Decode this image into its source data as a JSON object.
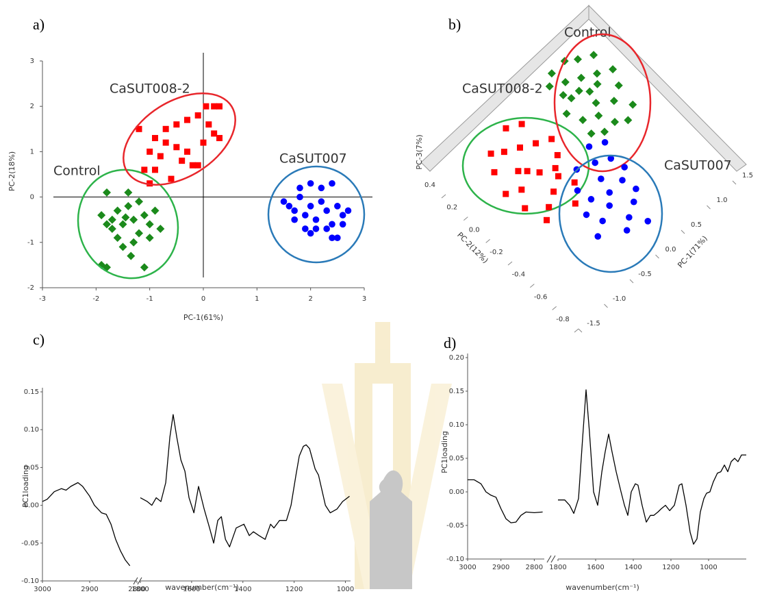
{
  "chart_data": [
    {
      "type": "scatter",
      "panel_label": "a)",
      "xlabel": "PC-1(61%)",
      "ylabel": "PC-2(18%)",
      "xlim": [
        -3,
        3
      ],
      "ylim": [
        -2,
        3
      ],
      "xticks": [
        -3,
        -2,
        -1,
        0,
        1,
        2,
        3
      ],
      "yticks": [
        -2,
        -1,
        0,
        1,
        2,
        3
      ],
      "series": [
        {
          "name": "Control",
          "color": "#1b8a1b",
          "marker": "diamond",
          "ellipse_color": "#2db34a",
          "x": [
            -1.9,
            -1.8,
            -1.7,
            -1.6,
            -1.5,
            -1.4,
            -1.3,
            -1.2,
            -1.1,
            -1.0,
            -0.9,
            -0.8,
            -1.8,
            -1.4,
            -1.6,
            -1.3,
            -1.2,
            -1.5,
            -1.35,
            -1.9,
            -1.8,
            -1.1,
            -1.0,
            -1.7,
            -1.45
          ],
          "y": [
            -0.4,
            -0.6,
            -0.5,
            -0.3,
            -0.6,
            -0.2,
            -0.5,
            -0.1,
            -0.4,
            -0.6,
            -0.3,
            -0.7,
            0.1,
            0.1,
            -0.9,
            -1.0,
            -0.8,
            -1.1,
            -1.3,
            -1.5,
            -1.55,
            -1.55,
            -0.9,
            -0.7,
            -0.45
          ]
        },
        {
          "name": "CaSUT008-2",
          "color": "#ff0000",
          "marker": "square",
          "ellipse_color": "#e8262b",
          "x": [
            -1.2,
            -0.9,
            -0.7,
            -0.5,
            -0.3,
            -0.1,
            0.1,
            0.2,
            0.3,
            0.05,
            -0.8,
            -0.9,
            -1.1,
            -1.0,
            -0.6,
            -0.4,
            -0.3,
            -0.2,
            0.3,
            -0.5,
            0.0,
            -0.1,
            -1.0,
            -0.7,
            0.2
          ],
          "y": [
            1.5,
            1.3,
            1.5,
            1.6,
            1.7,
            1.8,
            1.6,
            2.0,
            2.0,
            2.0,
            0.9,
            0.6,
            0.6,
            0.3,
            0.4,
            0.8,
            1.0,
            0.7,
            1.3,
            1.1,
            1.2,
            0.7,
            1.0,
            1.2,
            1.4
          ]
        },
        {
          "name": "CaSUT007",
          "color": "#0000ff",
          "marker": "circle",
          "ellipse_color": "#2a7ab8",
          "x": [
            1.5,
            1.6,
            1.7,
            1.8,
            1.9,
            2.0,
            2.1,
            2.2,
            2.3,
            2.4,
            2.5,
            2.6,
            2.7,
            2.0,
            2.2,
            2.4,
            1.8,
            2.0,
            2.1,
            2.4,
            2.5,
            1.7,
            2.3,
            2.6,
            1.9
          ],
          "y": [
            -0.1,
            -0.2,
            -0.3,
            0.0,
            -0.4,
            -0.2,
            -0.5,
            -0.1,
            -0.3,
            -0.6,
            -0.2,
            -0.4,
            -0.3,
            0.3,
            0.2,
            0.3,
            0.2,
            -0.8,
            -0.7,
            -0.9,
            -0.9,
            -0.5,
            -0.7,
            -0.6,
            -0.7
          ]
        }
      ]
    },
    {
      "type": "scatter3d",
      "panel_label": "b)",
      "xlabel": "PC-1(71%)",
      "ylabel": "PC-2(12%)",
      "zlabel": "PC-3(7%)",
      "xlim": [
        -1.5,
        1.5
      ],
      "ylim": [
        -0.8,
        0.4
      ],
      "xticks": [
        -1.5,
        {
          "value": -1,
          "label": "-1.0"
        },
        -0.5,
        {
          "value": 0,
          "label": "0.0"
        },
        0.5,
        {
          "value": 1,
          "label": "1.0"
        },
        1.5
      ],
      "yticks": [
        -0.8,
        -0.6,
        -0.4,
        -0.2,
        {
          "value": 0,
          "label": "0.0"
        },
        0.2,
        0.4
      ],
      "series": [
        {
          "name": "Control",
          "color": "#1b8a1b",
          "marker": "diamond",
          "ellipse_color": "#2db34a",
          "x": [
            0.5,
            0.3,
            0.2,
            0.4,
            0.6,
            0.8,
            0.9,
            0.7,
            0.5,
            0.3,
            0.1,
            0.2,
            0.6,
            0.75,
            1.0,
            0.85,
            0.4,
            0.55,
            0.65,
            0.35,
            0.15,
            0.95,
            0.45,
            0.7,
            0.25
          ],
          "y": [
            -0.03,
            0.1,
            -0.05,
            0.2,
            0.15,
            0.1,
            -0.05,
            -0.1,
            -0.2,
            -0.2,
            0.05,
            0.25,
            0.3,
            0.25,
            0.05,
            -0.2,
            -0.1,
            0.05,
            -0.25,
            0.3,
            -0.15,
            0.2,
            0.1,
            0.05,
            0.15
          ]
        },
        {
          "name": "CaSUT008-2",
          "color": "#ff0000",
          "marker": "square",
          "ellipse_color": "#e8262b",
          "x": [
            -0.86,
            -1.2,
            -1.1,
            -0.9,
            -0.7,
            -0.5,
            -0.4,
            -0.6,
            -0.8,
            -1.0,
            -1.3,
            -1.25,
            -0.5,
            -0.3,
            -0.7,
            -0.95,
            -1.05,
            -0.65,
            -0.45,
            -0.75,
            -1.15,
            -0.55
          ],
          "y": [
            -0.04,
            0.1,
            -0.1,
            0.15,
            0.1,
            0.05,
            -0.1,
            -0.2,
            -0.25,
            -0.3,
            -0.05,
            -0.2,
            -0.3,
            0.0,
            -0.4,
            0.0,
            0.2,
            0.25,
            0.2,
            -0.1,
            -0.35,
            -0.15
          ]
        },
        {
          "name": "CaSUT007",
          "color": "#0000ff",
          "marker": "circle",
          "ellipse_color": "#2a7ab8",
          "x": [
            -0.38,
            -0.2,
            0.0,
            -0.1,
            0.1,
            -0.5,
            -0.6,
            -0.3,
            -0.1,
            0.05,
            -0.45,
            -0.7,
            0.15,
            -0.25,
            -0.55,
            -0.8,
            -0.35,
            0.0,
            -0.15,
            0.2
          ],
          "y": [
            -0.56,
            -0.4,
            -0.5,
            -0.3,
            -0.35,
            -0.45,
            -0.6,
            -0.7,
            -0.65,
            -0.6,
            -0.75,
            -0.5,
            -0.45,
            -0.5,
            -0.35,
            -0.65,
            -0.25,
            -0.2,
            -0.8,
            -0.25
          ]
        }
      ]
    },
    {
      "type": "line",
      "panel_label": "c)",
      "xlabel": "wavenumber(cm⁻¹)",
      "ylabel": "PC1loading",
      "color": "#000000",
      "ylim": [
        -0.1,
        0.15
      ],
      "yticks": [
        {
          "value": -0.1,
          "label": "-0.10"
        },
        -0.05,
        {
          "value": 0,
          "label": "0.00"
        },
        0.05,
        {
          "value": 0.1,
          "label": "0.10"
        },
        0.15
      ],
      "segments": [
        {
          "xlim": [
            3000,
            2800
          ],
          "xticks": [
            3000,
            2900,
            2800
          ],
          "x": [
            3000,
            2990,
            2975,
            2960,
            2950,
            2940,
            2925,
            2915,
            2900,
            2890,
            2875,
            2865,
            2855,
            2845,
            2835,
            2825,
            2815
          ],
          "values": [
            0.005,
            0.008,
            0.018,
            0.022,
            0.02,
            0.025,
            0.03,
            0.025,
            0.012,
            0.0,
            -0.01,
            -0.012,
            -0.025,
            -0.045,
            -0.06,
            -0.072,
            -0.08
          ]
        },
        {
          "xlim": [
            1800,
            980
          ],
          "xticks": [
            1800,
            1600,
            1400,
            1200,
            1000
          ],
          "x": [
            1800,
            1773,
            1755,
            1738,
            1720,
            1701,
            1685,
            1672,
            1658,
            1642,
            1626,
            1610,
            1591,
            1573,
            1551,
            1530,
            1514,
            1498,
            1484,
            1468,
            1452,
            1426,
            1396,
            1375,
            1359,
            1337,
            1313,
            1292,
            1279,
            1257,
            1230,
            1212,
            1193,
            1180,
            1164,
            1153,
            1140,
            1118,
            1105,
            1078,
            1059,
            1033,
            1011,
            984
          ],
          "values": [
            0.01,
            0.005,
            0.0,
            0.01,
            0.005,
            0.03,
            0.09,
            0.12,
            0.09,
            0.06,
            0.045,
            0.01,
            -0.01,
            0.025,
            -0.005,
            -0.03,
            -0.05,
            -0.02,
            -0.015,
            -0.045,
            -0.055,
            -0.03,
            -0.025,
            -0.04,
            -0.035,
            -0.04,
            -0.045,
            -0.025,
            -0.03,
            -0.02,
            -0.02,
            0.0,
            0.04,
            0.065,
            0.078,
            0.08,
            0.075,
            0.048,
            0.04,
            0.0,
            -0.01,
            -0.005,
            0.005,
            0.012
          ]
        }
      ]
    },
    {
      "type": "line",
      "panel_label": "d)",
      "xlabel": "wavenumber(cm⁻¹)",
      "ylabel": "PC1loading",
      "color": "#000000",
      "ylim": [
        -0.1,
        0.2
      ],
      "yticks": [
        {
          "value": -0.1,
          "label": "-0.10"
        },
        -0.05,
        {
          "value": 0,
          "label": "0.00"
        },
        0.05,
        {
          "value": 0.1,
          "label": "0.10"
        },
        0.15,
        {
          "value": 0.2,
          "label": "0.20"
        }
      ],
      "segments": [
        {
          "xlim": [
            3000,
            2770
          ],
          "xticks": [
            3000,
            2900,
            2800
          ],
          "x": [
            3000,
            2980,
            2960,
            2945,
            2930,
            2915,
            2900,
            2885,
            2870,
            2855,
            2840,
            2825,
            2800,
            2775
          ],
          "values": [
            0.018,
            0.018,
            0.012,
            0.0,
            -0.005,
            -0.008,
            -0.025,
            -0.04,
            -0.046,
            -0.045,
            -0.035,
            -0.03,
            -0.031,
            -0.03
          ]
        },
        {
          "xlim": [
            1800,
            800
          ],
          "xticks": [
            1800,
            1600,
            1400,
            1200,
            1000
          ],
          "x": [
            1800,
            1764,
            1738,
            1716,
            1691,
            1669,
            1651,
            1633,
            1611,
            1589,
            1567,
            1549,
            1531,
            1513,
            1491,
            1465,
            1447,
            1429,
            1411,
            1389,
            1375,
            1353,
            1331,
            1309,
            1291,
            1269,
            1251,
            1229,
            1207,
            1182,
            1156,
            1142,
            1120,
            1098,
            1080,
            1062,
            1044,
            1025,
            1011,
            993,
            975,
            953,
            935,
            916,
            898,
            880,
            862,
            844,
            825,
            800
          ],
          "values": [
            -0.012,
            -0.012,
            -0.02,
            -0.032,
            -0.01,
            0.08,
            0.152,
            0.09,
            0.0,
            -0.02,
            0.03,
            0.06,
            0.086,
            0.06,
            0.03,
            0.0,
            -0.02,
            -0.035,
            0.0,
            0.012,
            0.01,
            -0.02,
            -0.045,
            -0.035,
            -0.035,
            -0.03,
            -0.025,
            -0.02,
            -0.028,
            -0.02,
            0.01,
            0.012,
            -0.02,
            -0.06,
            -0.078,
            -0.07,
            -0.03,
            -0.01,
            -0.002,
            0.0,
            0.015,
            0.028,
            0.03,
            0.04,
            0.03,
            0.045,
            0.05,
            0.045,
            0.055,
            0.055
          ]
        }
      ]
    }
  ]
}
